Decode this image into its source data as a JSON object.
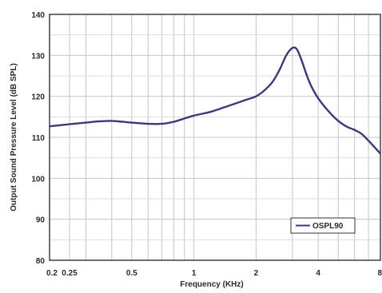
{
  "chart_data": {
    "type": "line",
    "title": "",
    "xlabel": "Frequency (KHz)",
    "ylabel": "Output Sound Pressure Level (dB SPL)",
    "x_scale": "log",
    "xlim": [
      0.2,
      8
    ],
    "ylim": [
      80,
      140
    ],
    "x_ticks": [
      {
        "value": 0.2,
        "label": "0.2"
      },
      {
        "value": 0.25,
        "label": "0.25"
      },
      {
        "value": 0.5,
        "label": "0.5"
      },
      {
        "value": 1,
        "label": "1"
      },
      {
        "value": 2,
        "label": "2"
      },
      {
        "value": 4,
        "label": "4"
      },
      {
        "value": 8,
        "label": "8"
      }
    ],
    "y_ticks": [
      80,
      90,
      100,
      110,
      120,
      130,
      140
    ],
    "grid": true,
    "legend_position": "bottom-right",
    "series": [
      {
        "name": "OSPL90",
        "color": "#3a3a7a",
        "x": [
          0.2,
          0.25,
          0.3,
          0.35,
          0.4,
          0.45,
          0.5,
          0.6,
          0.7,
          0.8,
          0.9,
          1.0,
          1.2,
          1.4,
          1.6,
          1.8,
          2.0,
          2.2,
          2.4,
          2.6,
          2.8,
          3.0,
          3.15,
          3.3,
          3.5,
          3.7,
          4.0,
          4.5,
          5.0,
          5.5,
          6.0,
          6.5,
          7.0,
          8.0
        ],
        "y": [
          112.7,
          113.2,
          113.6,
          113.9,
          114.0,
          113.8,
          113.6,
          113.3,
          113.3,
          113.8,
          114.6,
          115.3,
          116.2,
          117.3,
          118.3,
          119.2,
          120.0,
          121.5,
          123.5,
          126.5,
          130.0,
          131.8,
          131.5,
          129.2,
          125.5,
          122.5,
          119.5,
          116.3,
          114.0,
          112.6,
          111.8,
          110.8,
          109.2,
          106.0
        ]
      }
    ]
  }
}
